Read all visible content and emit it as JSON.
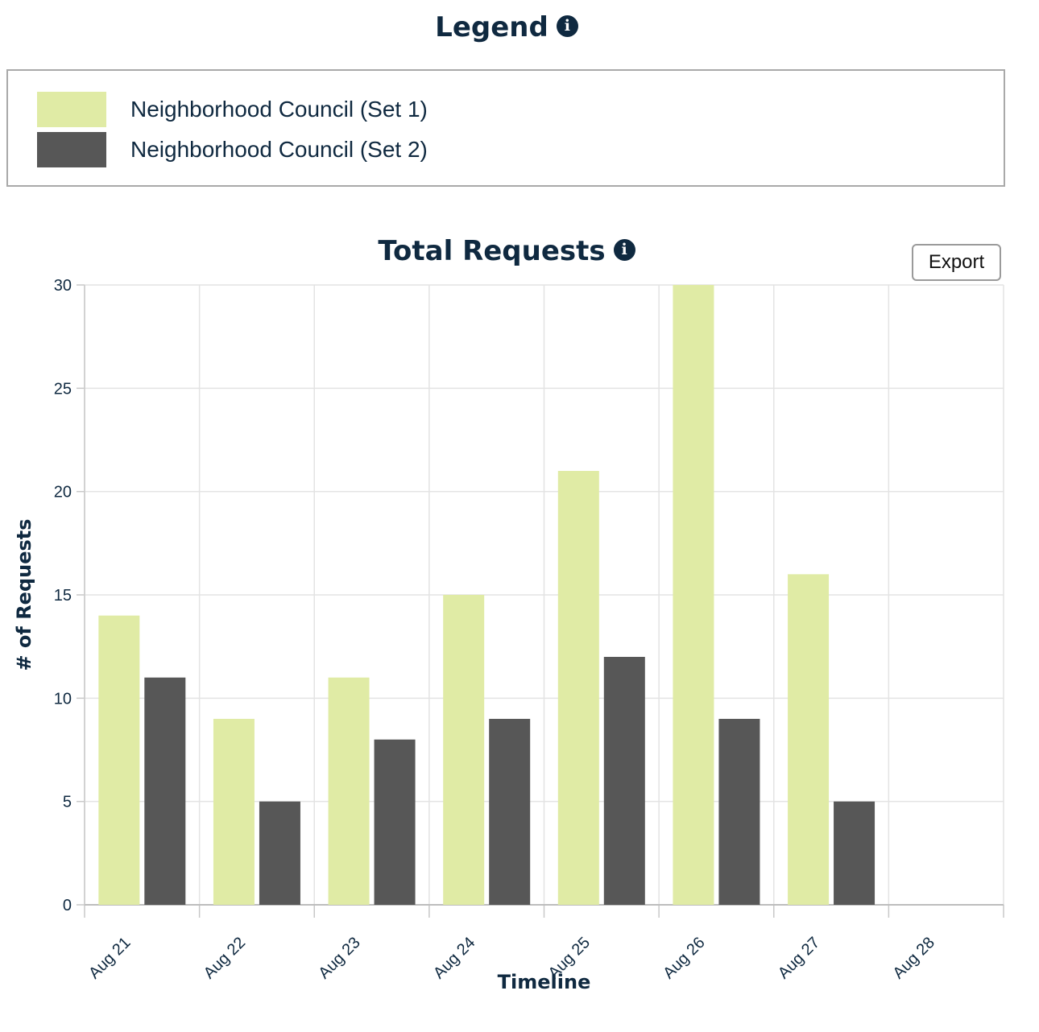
{
  "legend": {
    "title": "Legend",
    "info_icon": "info-icon",
    "items": [
      {
        "label": "Neighborhood Council (Set 1)",
        "color": "#e0eba5"
      },
      {
        "label": "Neighborhood Council (Set 2)",
        "color": "#575757"
      }
    ]
  },
  "chart": {
    "title": "Total Requests",
    "info_icon": "info-icon",
    "export_label": "Export"
  },
  "chart_data": {
    "type": "bar",
    "title": "Total Requests",
    "xlabel": "Timeline",
    "ylabel": "# of Requests",
    "categories": [
      "Aug 21",
      "Aug 22",
      "Aug 23",
      "Aug 24",
      "Aug 25",
      "Aug 26",
      "Aug 27",
      "Aug 28"
    ],
    "series": [
      {
        "name": "Neighborhood Council (Set 1)",
        "color": "#e0eba5",
        "values": [
          14,
          9,
          11,
          15,
          21,
          30,
          16,
          null
        ]
      },
      {
        "name": "Neighborhood Council (Set 2)",
        "color": "#575757",
        "values": [
          11,
          5,
          8,
          9,
          12,
          9,
          5,
          null
        ]
      }
    ],
    "ylim": [
      0,
      30
    ],
    "yticks": [
      0,
      5,
      10,
      15,
      20,
      25,
      30
    ],
    "grid": true,
    "legend_placement": "top"
  }
}
